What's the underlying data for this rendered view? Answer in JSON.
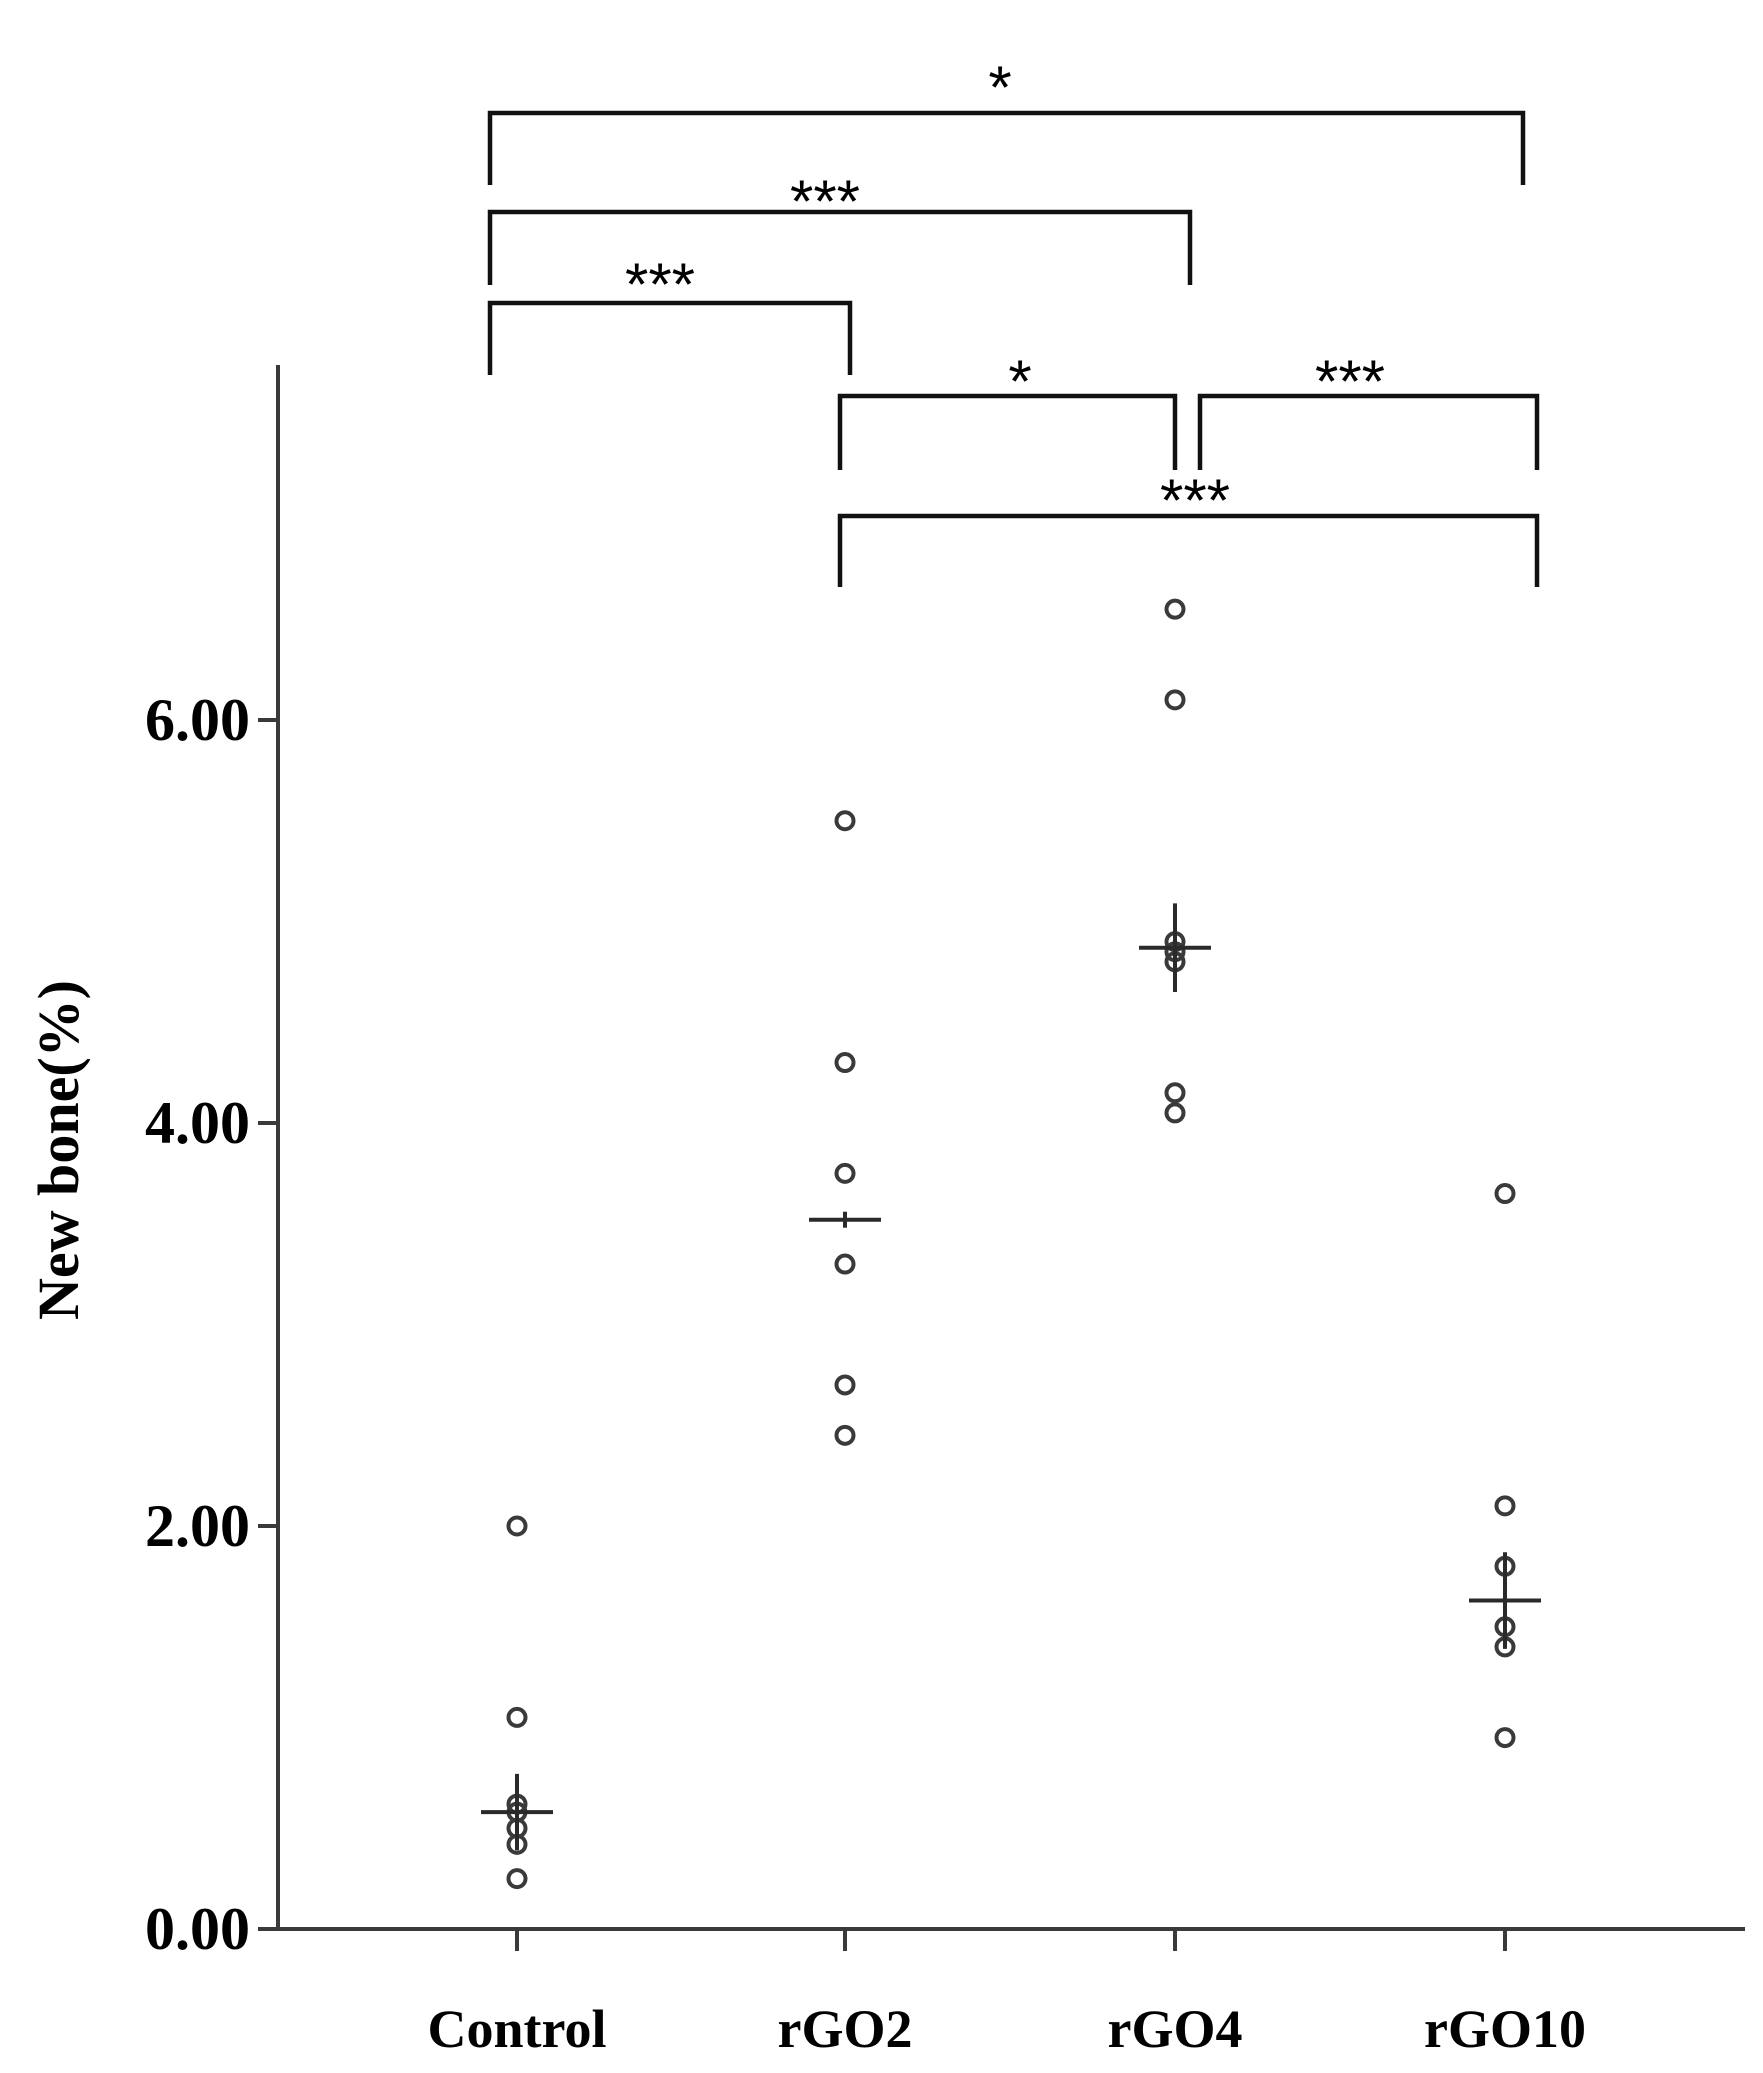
{
  "chart_data": {
    "type": "scatter",
    "title": "",
    "xlabel": "",
    "ylabel": "New bone(%)",
    "ylim": [
      0,
      8
    ],
    "yticks": [
      "0.00",
      "2.00",
      "4.00",
      "6.00"
    ],
    "categories": [
      "Control",
      "rGO2",
      "rGO4",
      "rGO10"
    ],
    "points": [
      [
        2.0,
        1.05,
        0.62,
        0.58,
        0.5,
        0.42,
        0.25
      ],
      [
        5.5,
        4.3,
        3.75,
        3.3,
        2.7,
        2.45
      ],
      [
        6.55,
        6.1,
        4.9,
        4.85,
        4.8,
        4.15,
        4.05
      ],
      [
        3.65,
        2.1,
        1.8,
        1.5,
        1.4,
        0.95
      ]
    ],
    "means": [
      0.58,
      3.52,
      4.87,
      1.63
    ],
    "errors": [
      0.15,
      0.0,
      0.18,
      0.2
    ],
    "comparisons": [
      {
        "from": 0,
        "to": 3,
        "label": "*"
      },
      {
        "from": 0,
        "to": 2,
        "label": "***"
      },
      {
        "from": 0,
        "to": 1,
        "label": "***"
      },
      {
        "from": 1,
        "to": 2,
        "label": "*"
      },
      {
        "from": 2,
        "to": 3,
        "label": "***"
      },
      {
        "from": 1,
        "to": 3,
        "label": "***"
      }
    ],
    "grid": false,
    "legend": "none"
  }
}
